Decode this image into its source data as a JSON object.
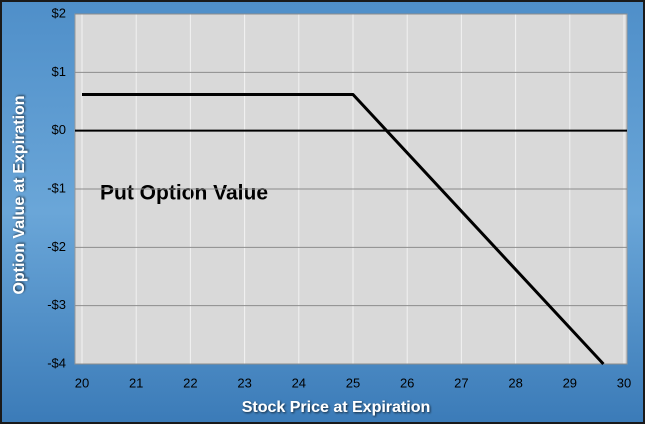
{
  "chart_data": {
    "type": "line",
    "x_label": "Stock Price at Expiration",
    "y_label": "Option Value at Expiration",
    "annotation": "Put Option Value",
    "series": [
      {
        "name": "Put Option Value",
        "color": "#000000",
        "x": [
          20,
          25,
          29.62
        ],
        "values": [
          0.62,
          0.62,
          -4
        ]
      }
    ],
    "xlim": [
      20,
      30
    ],
    "xticks": [
      20,
      21,
      22,
      23,
      24,
      25,
      26,
      27,
      28,
      29,
      30
    ],
    "ylim": [
      -4,
      2
    ],
    "yticks": [
      {
        "value": 2,
        "label": "$2"
      },
      {
        "value": 1,
        "label": "$1"
      },
      {
        "value": 0,
        "label": "$0"
      },
      {
        "value": -1,
        "label": "-$1"
      },
      {
        "value": -2,
        "label": "-$2"
      },
      {
        "value": -3,
        "label": "-$3"
      },
      {
        "value": -4,
        "label": "-$4"
      }
    ],
    "grid": true
  }
}
